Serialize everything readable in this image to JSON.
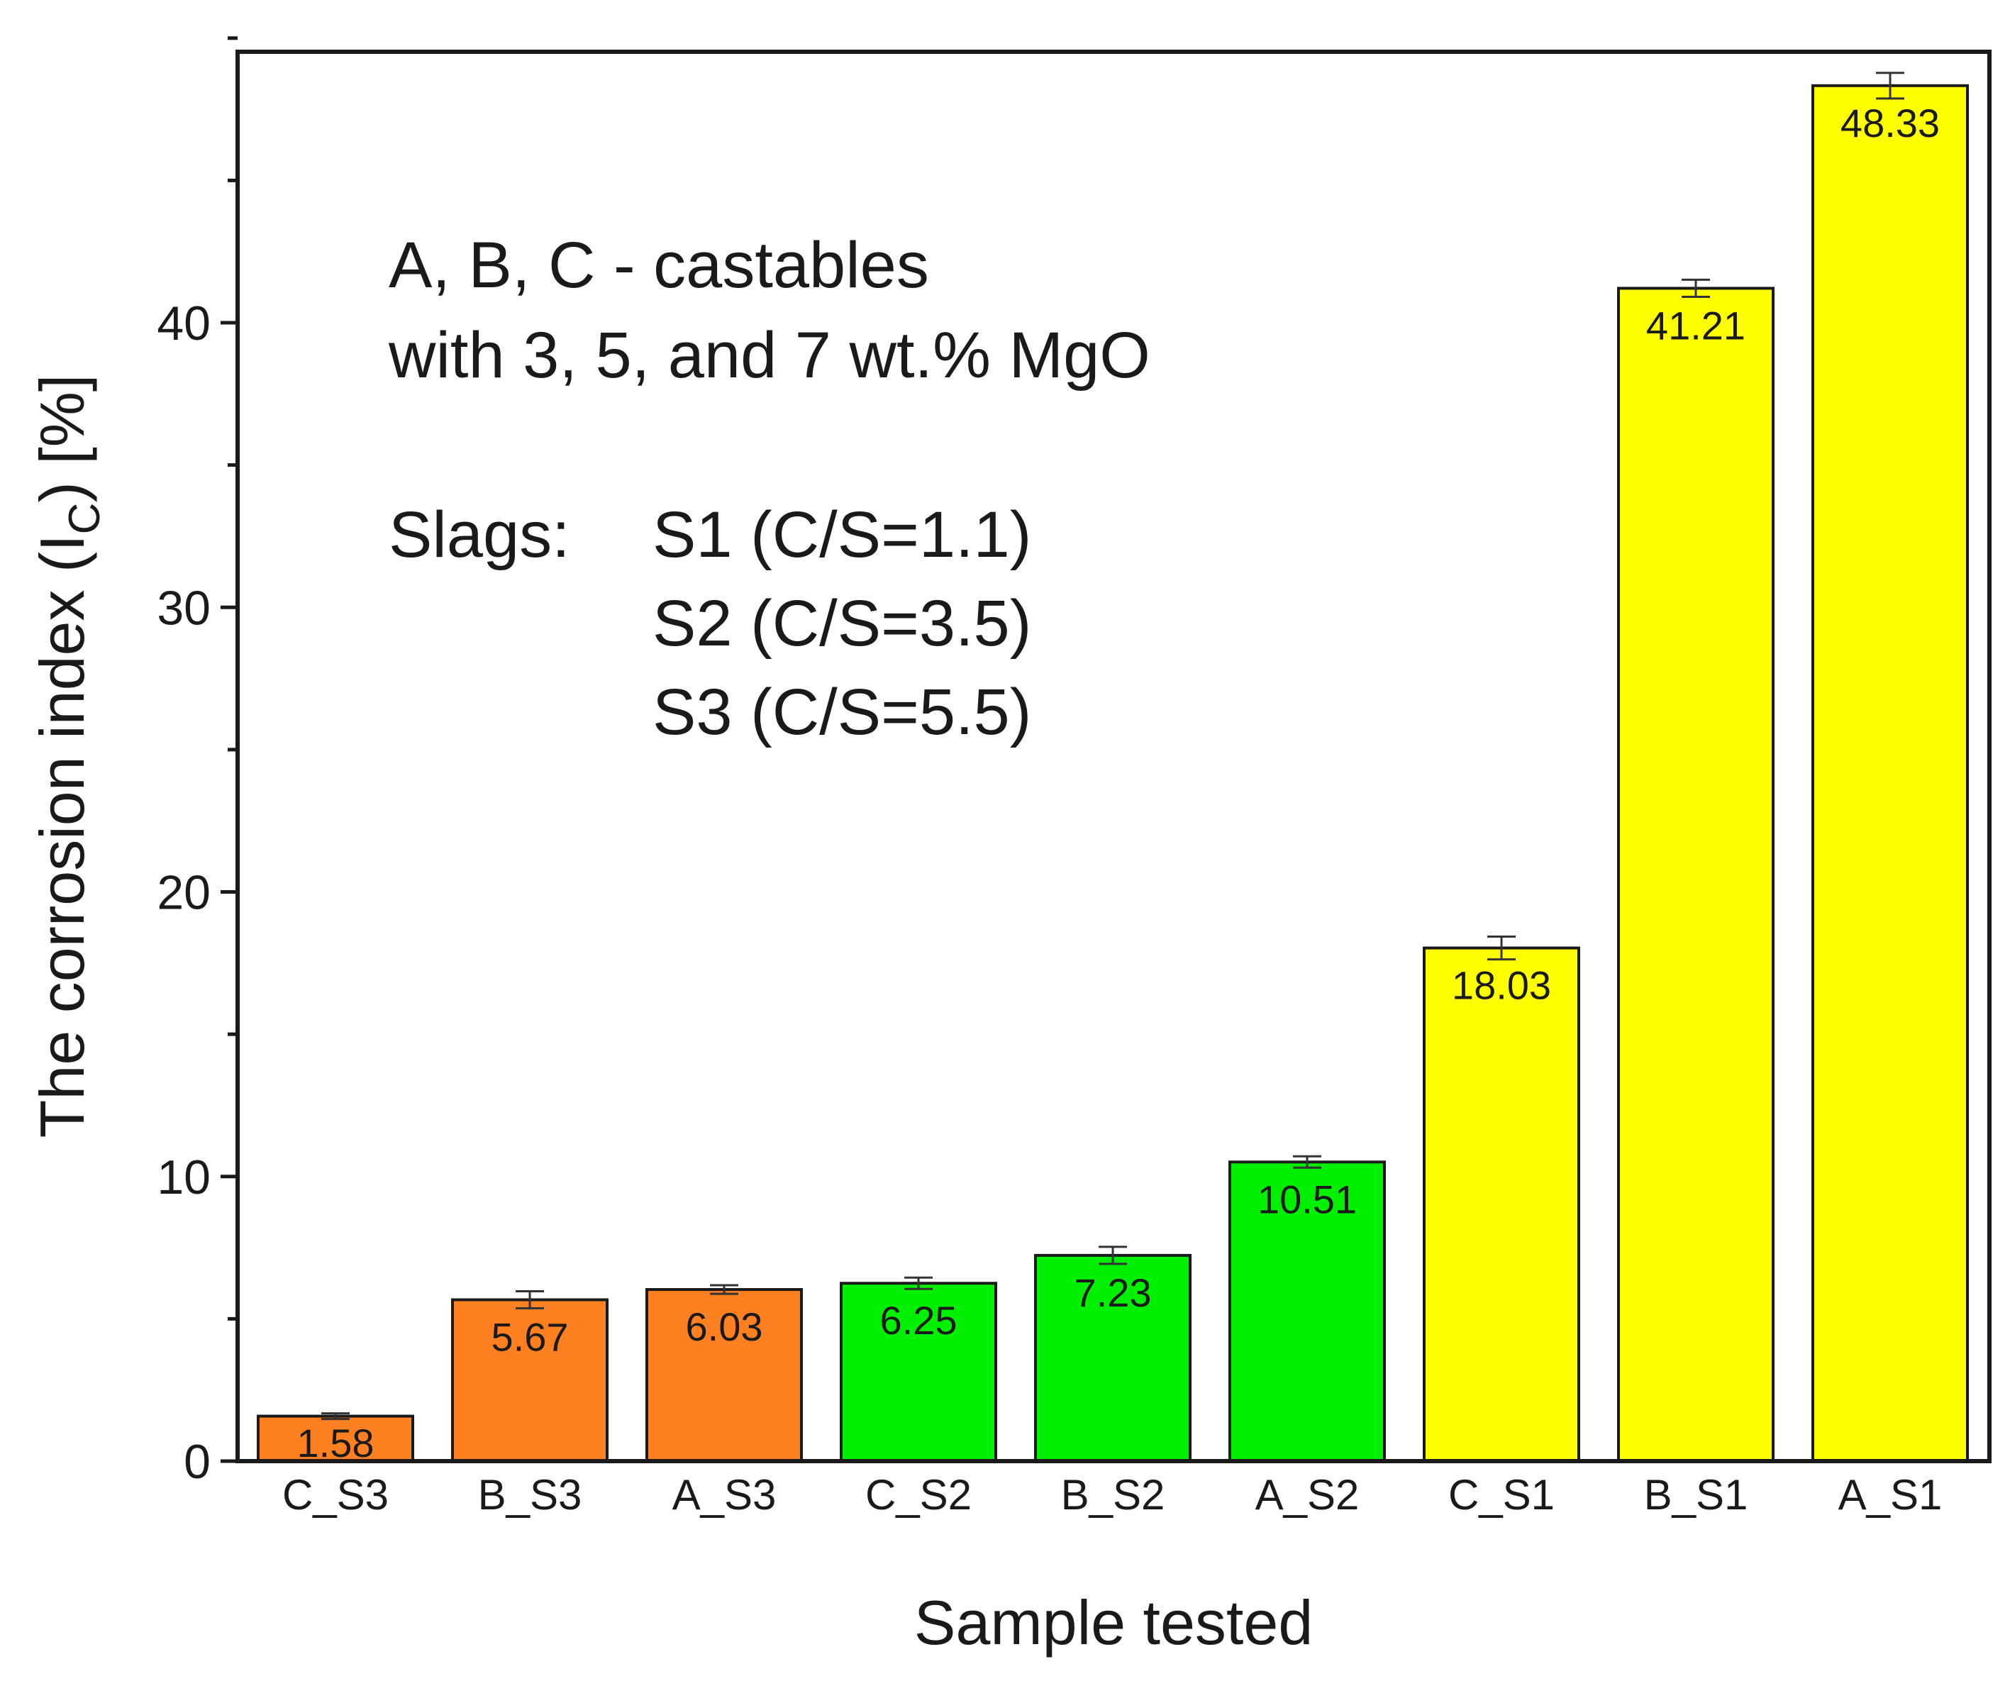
{
  "chart_data": {
    "type": "bar",
    "title": "",
    "xlabel": "Sample tested",
    "ylabel": {
      "prefix": "The corrosion index (I",
      "subscript": "C",
      "suffix": ") [%]"
    },
    "ylim": [
      0,
      50
    ],
    "y_ticks": [
      0,
      10,
      20,
      30,
      40
    ],
    "y_minor_step": 5,
    "grid": false,
    "categories": [
      "C_S3",
      "B_S3",
      "A_S3",
      "C_S2",
      "B_S2",
      "A_S2",
      "C_S1",
      "B_S1",
      "A_S1"
    ],
    "values": [
      1.58,
      5.67,
      6.03,
      6.25,
      7.23,
      10.51,
      18.03,
      41.21,
      48.33
    ],
    "value_labels": [
      "1.58",
      "5.67",
      "6.03",
      "6.25",
      "7.23",
      "10.51",
      "18.03",
      "41.21",
      "48.33"
    ],
    "errors": [
      0.1,
      0.3,
      0.15,
      0.2,
      0.3,
      0.2,
      0.4,
      0.3,
      0.45
    ],
    "groups": [
      "S3",
      "S3",
      "S3",
      "S2",
      "S2",
      "S2",
      "S1",
      "S1",
      "S1"
    ],
    "group_colors": {
      "S3": "#ff8020",
      "S2": "#00f000",
      "S1": "#ffff00"
    },
    "annotation": {
      "lines": [
        "A, B, C - castables",
        "with 3, 5, and 7 wt.% MgO"
      ],
      "slags_label": "Slags:",
      "slags": [
        "S1 (C/S=1.1)",
        "S2 (C/S=3.5)",
        "S3 (C/S=5.5)"
      ]
    }
  }
}
